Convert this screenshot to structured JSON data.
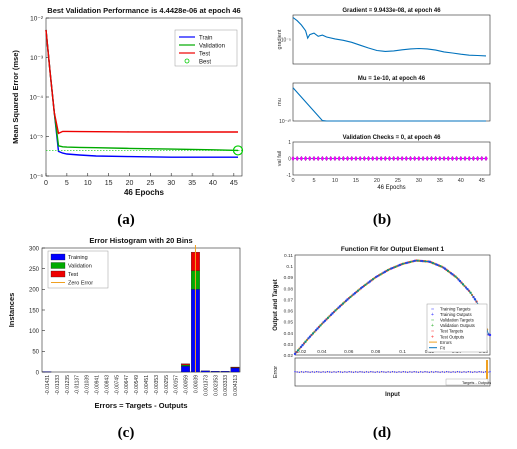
{
  "figure": {
    "captions": [
      "(a)",
      "(b)",
      "(c)",
      "(d)"
    ]
  },
  "colors": {
    "train": "#0000ff",
    "validation": "#00aa00",
    "test": "#ee0000",
    "best": "#00cc00",
    "zero_error": "#f0a020",
    "fit": "#0072bd",
    "panel_b_line": "#0072bd",
    "panel_b_marker": "#ff00ff",
    "axes_bg": "#ffffff",
    "grid": "#e8e8e8"
  },
  "chart_data": [
    {
      "id": "a",
      "type": "line",
      "title": "Best Validation Performance is 4.4428e-06 at epoch 46",
      "xlabel": "46 Epochs",
      "ylabel": "Mean Squared Error  (mse)",
      "xlim": [
        0,
        46
      ],
      "yscale": "log",
      "ylim": [
        1e-06,
        0.01
      ],
      "xticks": [
        "0",
        "5",
        "10",
        "15",
        "20",
        "25",
        "30",
        "35",
        "40",
        "45"
      ],
      "yticks": [
        "10⁻⁶",
        "10⁻⁵",
        "10⁻⁴",
        "10⁻³",
        "10⁻²"
      ],
      "legend_position": "top-right",
      "legend": [
        "Train",
        "Validation",
        "Test",
        "Best"
      ],
      "series": [
        {
          "name": "Train",
          "x": [
            0,
            1,
            2,
            3,
            4,
            5,
            8,
            12,
            20,
            30,
            40,
            46
          ],
          "y": [
            0.005,
            0.0004,
            4e-05,
            4.2e-06,
            3.8e-06,
            3.6e-06,
            3.4e-06,
            3.2e-06,
            3.1e-06,
            3e-06,
            3e-06,
            3e-06
          ]
        },
        {
          "name": "Validation",
          "x": [
            0,
            1,
            2,
            3,
            4,
            5,
            8,
            12,
            20,
            30,
            40,
            46
          ],
          "y": [
            0.005,
            0.0004,
            4e-05,
            5.8e-06,
            5.5e-06,
            5.4e-06,
            5.3e-06,
            5.2e-06,
            5e-06,
            4.8e-06,
            4.6e-06,
            4.4428e-06
          ]
        },
        {
          "name": "Test",
          "x": [
            0,
            1,
            2,
            3,
            4,
            5,
            8,
            12,
            20,
            30,
            40,
            46
          ],
          "y": [
            0.005,
            0.0004,
            4e-05,
            1.2e-05,
            1.35e-05,
            1.35e-05,
            1.33e-05,
            1.32e-05,
            1.31e-05,
            1.3e-05,
            1.3e-05,
            1.3e-05
          ]
        }
      ],
      "best": {
        "x": 46,
        "y": 4.4428e-06
      }
    },
    {
      "id": "b",
      "type": "line",
      "xlabel": "46 Epochs",
      "xlim": [
        0,
        46
      ],
      "xticks": [
        "0",
        "5",
        "10",
        "15",
        "20",
        "25",
        "30",
        "35",
        "40",
        "45"
      ],
      "subplots": [
        {
          "title": "Gradient = 9.9433e-08, at epoch 46",
          "ylabel": "gradient",
          "yscale": "log",
          "ylim": [
            1e-08,
            0.01
          ],
          "ytick_labels": [
            "10⁻⁵"
          ],
          "ytick_values": [
            1e-05
          ],
          "x": [
            0,
            1,
            2,
            3,
            3.5,
            4,
            5,
            6,
            7,
            8,
            10,
            12,
            14,
            16,
            18,
            20,
            22,
            24,
            26,
            28,
            30,
            32,
            34,
            36,
            38,
            40,
            42,
            44,
            46
          ],
          "y": [
            0.005,
            0.002,
            0.0006,
            0.00012,
            1.5e-05,
            4e-05,
            6e-05,
            2.5e-05,
            3.5e-05,
            2e-05,
            1.2e-05,
            8e-06,
            4.5e-06,
            2e-06,
            9e-07,
            4.5e-07,
            3.5e-07,
            4e-07,
            5.5e-07,
            7e-07,
            8e-07,
            7e-07,
            5e-07,
            3e-07,
            2.2e-07,
            1.6e-07,
            1.2e-07,
            1.1e-07,
            9.9433e-08
          ]
        },
        {
          "title": "Mu = 1e-10, at epoch 46",
          "ylabel": "mu",
          "yscale": "log",
          "ylim": [
            1e-10,
            0.01
          ],
          "ytick_labels": [
            "10⁻¹⁰"
          ],
          "ytick_values": [
            1e-10
          ],
          "x": [
            0,
            7,
            8,
            46
          ],
          "y": [
            0.001,
            1.2e-10,
            1e-10,
            1e-10
          ]
        },
        {
          "title": "Validation Checks = 0, at epoch 46",
          "ylabel": "val fail",
          "ylim": [
            -1,
            1
          ],
          "ytick_labels": [
            "1",
            "0",
            "-1"
          ],
          "ytick_values": [
            1,
            0,
            -1
          ],
          "marker": "diamond",
          "y_constant": 0
        }
      ]
    },
    {
      "id": "c",
      "type": "bar",
      "title": "Error Histogram with 20 Bins",
      "xlabel": "Errors = Targets - Outputs",
      "ylabel": "Instances",
      "ylim": [
        0,
        300
      ],
      "yticks": [
        "0",
        "50",
        "100",
        "150",
        "200",
        "250",
        "300"
      ],
      "legend_position": "top-left",
      "legend": [
        "Training",
        "Validation",
        "Test",
        "Zero Error"
      ],
      "categories": [
        "-0.01431",
        "-0.01333",
        "-0.01235",
        "-0.01137",
        "-0.01039",
        "-0.00941",
        "-0.00843",
        "-0.00745",
        "-0.00647",
        "-0.00549",
        "-0.00451",
        "-0.00353",
        "-0.00255",
        "-0.00157",
        "-0.00059",
        "0.00039",
        "0.001373",
        "0.002353",
        "0.003333",
        "0.004313"
      ],
      "series": [
        {
          "name": "Training",
          "values": [
            1,
            0,
            0,
            0,
            0,
            0,
            0,
            0,
            0,
            0,
            0,
            0,
            0,
            0,
            14,
            200,
            3,
            2,
            2,
            10
          ]
        },
        {
          "name": "Validation",
          "values": [
            0,
            0,
            0,
            0,
            0,
            0,
            0,
            0,
            0,
            0,
            0,
            0,
            0,
            0,
            3,
            45,
            0,
            0,
            0,
            1
          ]
        },
        {
          "name": "Test",
          "values": [
            0,
            0,
            0,
            0,
            0,
            0,
            0,
            0,
            0,
            0,
            0,
            0,
            0,
            0,
            3,
            45,
            0,
            0,
            0,
            1
          ]
        }
      ],
      "zero_error_category_index": 15
    },
    {
      "id": "d",
      "type": "scatter",
      "title": "Function Fit for Output Element 1",
      "xlabel": "Input",
      "ylabel": "Output and Target",
      "xlim": [
        0.02,
        0.165
      ],
      "ylim": [
        0.02,
        0.11
      ],
      "xticks": [
        "0.04",
        "0.06",
        "0.08",
        "0.1",
        "0.12",
        "0.14",
        "0.16"
      ],
      "yticks": [
        "0.02",
        "0.03",
        "0.04",
        "0.05",
        "0.06",
        "0.07",
        "0.08",
        "0.09",
        "0.1",
        "0.11"
      ],
      "x_extra_label": "0.02",
      "legend_position": "bottom-right",
      "legend": [
        "Training Targets",
        "Training Outputs",
        "Validation Targets",
        "Validation Outputs",
        "Test Targets",
        "Test Outputs",
        "Errors",
        "Fit"
      ],
      "fit_x": [
        0.02,
        0.03,
        0.04,
        0.05,
        0.06,
        0.07,
        0.08,
        0.09,
        0.1,
        0.11,
        0.12,
        0.13,
        0.14,
        0.15,
        0.155,
        0.16,
        0.162,
        0.164
      ],
      "fit_y": [
        0.021,
        0.035,
        0.048,
        0.06,
        0.071,
        0.081,
        0.09,
        0.097,
        0.102,
        0.105,
        0.104,
        0.099,
        0.09,
        0.077,
        0.068,
        0.055,
        0.046,
        0.038
      ],
      "error_panel": {
        "ylabel": "Error",
        "legend": [
          "Targets - Outputs"
        ],
        "legend_position": "bottom-right"
      }
    }
  ]
}
